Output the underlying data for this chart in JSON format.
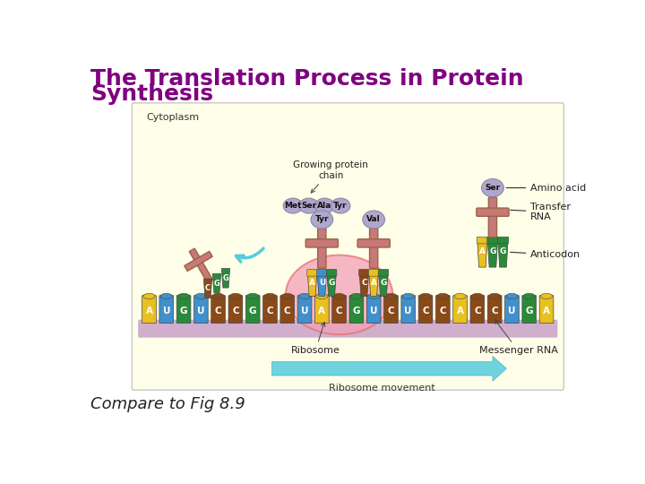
{
  "title_line1": "The Translation Process in Protein",
  "title_line2": "Synthesis",
  "title_color": "#800080",
  "title_fontsize": 18,
  "title_bold": true,
  "subtitle": "Compare to Fig 8.9",
  "subtitle_fontsize": 13,
  "subtitle_italic": true,
  "subtitle_color": "#222222",
  "bg_color": "#ffffff",
  "diagram_bg": "#fffee8",
  "ribosome_color": "#f4a0b8",
  "mrna_base_color": "#c8a0c8",
  "arrow_color": "#55ccdd",
  "tRNA_cross_color": "#c87878",
  "tRNA_cross_edge": "#996644",
  "aa_circle_color": "#b0a8cc",
  "aa_circle_edge": "#8888aa",
  "nucleotide_colors": {
    "A": "#e8c020",
    "U": "#4090cc",
    "G": "#2a8a3a",
    "C": "#8a4a18"
  },
  "mrna_sequence": [
    "A",
    "U",
    "G",
    "U",
    "C",
    "C",
    "G",
    "C",
    "C",
    "U",
    "A",
    "C",
    "G",
    "U",
    "C",
    "U",
    "C",
    "C",
    "A",
    "C",
    "C",
    "U",
    "G",
    "A"
  ],
  "figure_width": 7.2,
  "figure_height": 5.4,
  "dpi": 100
}
